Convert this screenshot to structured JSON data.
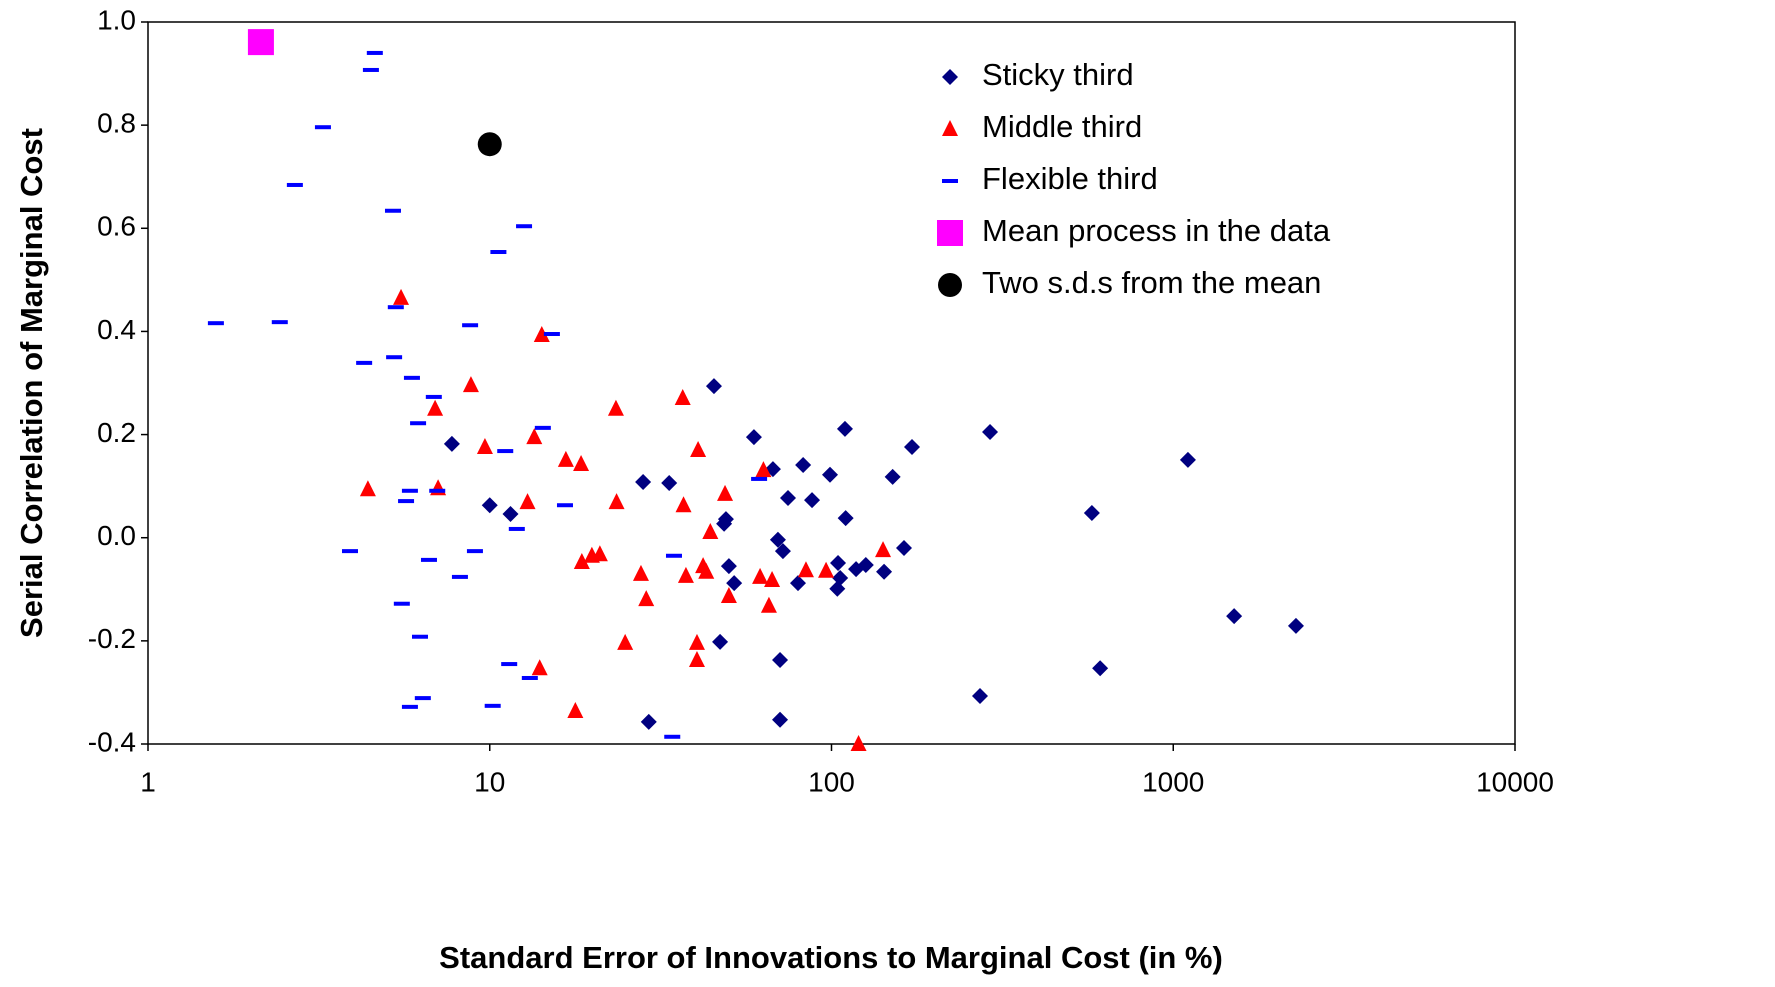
{
  "chart_data": {
    "type": "scatter",
    "xlabel": "Standard Error of Innovations to Marginal Cost (in %)",
    "ylabel": "Serial Correlation of Marginal Cost",
    "xscale": "log",
    "xlim": [
      1,
      10000
    ],
    "ylim": [
      -0.4,
      1.0
    ],
    "xticks": [
      1,
      10,
      100,
      1000,
      10000
    ],
    "yticks": [
      -0.4,
      -0.2,
      {
        "value": 0,
        "label": "0.0"
      },
      0.2,
      0.4,
      0.6,
      0.8,
      {
        "value": 1,
        "label": "1.0"
      }
    ],
    "grid": false,
    "legend": "upper right",
    "series": [
      {
        "name": "Sticky third",
        "color": "#000080",
        "marker": "diamond",
        "x": [
          7.75,
          10,
          11.5,
          28.1,
          33.5,
          45.3,
          49.1,
          48.5,
          50.1,
          51.9,
          47.2,
          29.2,
          59.3,
          67.4,
          69.7,
          72.1,
          74.6,
          70.7,
          70.7,
          79.8,
          82.6,
          87.7,
          99,
          104.5,
          104,
          106,
          109.5,
          110,
          118,
          126,
          142.5,
          151,
          163,
          172,
          272,
          291,
          578,
          611,
          1104,
          1507,
          2286
        ],
        "values": [
          0.182,
          0.063,
          0.046,
          0.108,
          0.106,
          0.294,
          0.036,
          0.027,
          -0.055,
          -0.088,
          -0.202,
          -0.357,
          0.195,
          0.133,
          -0.004,
          -0.026,
          0.077,
          -0.237,
          -0.353,
          -0.088,
          0.141,
          0.073,
          0.122,
          -0.049,
          -0.099,
          -0.078,
          0.211,
          0.038,
          -0.061,
          -0.053,
          -0.066,
          0.118,
          -0.02,
          0.176,
          -0.307,
          0.205,
          0.048,
          -0.253,
          0.151,
          -0.152,
          -0.171
        ]
      },
      {
        "name": "Middle third",
        "color": "#ff0000",
        "marker": "triangle",
        "x": [
          4.4,
          5.5,
          6.92,
          7.06,
          8.81,
          9.68,
          12.9,
          13.5,
          14.2,
          14.0,
          16.7,
          18.5,
          18.6,
          19.9,
          21.0,
          17.8,
          23.4,
          23.5,
          24.9,
          27.7,
          28.7,
          36.7,
          36.9,
          37.5,
          40.7,
          40.4,
          40.4,
          42.1,
          43.0,
          44.2,
          48.8,
          50.1,
          61.8,
          63.2,
          65.6,
          67.0,
          84.2,
          96.4,
          120,
          141.5
        ],
        "values": [
          0.094,
          0.465,
          0.25,
          0.096,
          0.296,
          0.176,
          0.069,
          0.195,
          0.393,
          -0.253,
          0.151,
          0.143,
          -0.047,
          -0.035,
          -0.032,
          -0.336,
          0.25,
          0.069,
          -0.204,
          -0.07,
          -0.119,
          0.271,
          0.063,
          -0.074,
          0.17,
          -0.204,
          -0.237,
          -0.055,
          -0.066,
          0.011,
          0.085,
          -0.113,
          -0.076,
          0.131,
          -0.132,
          -0.082,
          -0.063,
          -0.064,
          -0.4,
          -0.024
        ]
      },
      {
        "name": "Flexible third",
        "color": "#0000ff",
        "marker": "dash",
        "x": [
          1.58,
          2.43,
          2.69,
          3.25,
          3.9,
          4.29,
          4.49,
          4.61,
          5.21,
          5.25,
          5.31,
          5.53,
          5.69,
          5.84,
          5.92,
          6.17,
          6.25,
          5.84,
          6.37,
          6.64,
          6.86,
          7.02,
          8.18,
          8.76,
          9.05,
          10.2,
          11.1,
          11.4,
          12.0,
          12.6,
          10.6,
          13.1,
          14.3,
          15.2,
          16.6,
          34.6,
          34.2,
          61.4
        ],
        "values": [
          0.416,
          0.418,
          0.684,
          0.796,
          -0.026,
          0.339,
          0.907,
          0.94,
          0.634,
          0.35,
          0.447,
          -0.128,
          0.071,
          0.091,
          0.31,
          0.222,
          -0.192,
          -0.328,
          -0.311,
          -0.043,
          0.273,
          0.091,
          -0.076,
          0.412,
          -0.026,
          -0.326,
          0.168,
          -0.245,
          0.017,
          0.604,
          0.554,
          -0.272,
          0.213,
          0.395,
          0.063,
          -0.035,
          -0.386,
          0.114
        ]
      },
      {
        "name": "Mean process in the data",
        "color": "#ff00ff",
        "marker": "square",
        "x": [
          2.14
        ],
        "values": [
          0.961
        ]
      },
      {
        "name": "Two s.d.s from the mean",
        "color": "#000000",
        "marker": "circle",
        "x": [
          10.0
        ],
        "values": [
          0.763
        ]
      }
    ]
  }
}
